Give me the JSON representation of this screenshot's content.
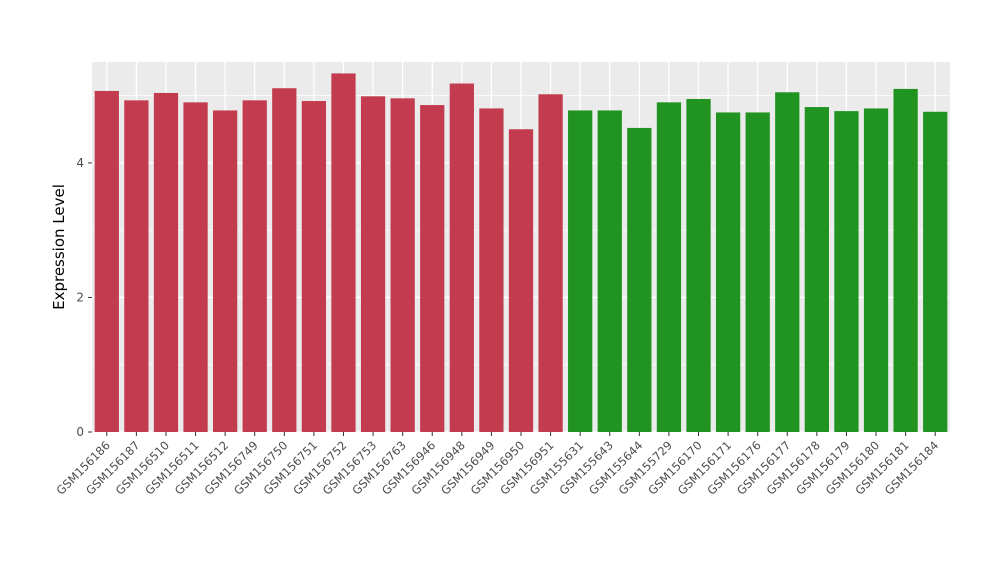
{
  "chart_data": {
    "type": "bar",
    "title": "",
    "xlabel": "",
    "ylabel": "Expression Level",
    "ylim": [
      0,
      5.5
    ],
    "yticks_major": [
      0,
      2,
      4
    ],
    "yticks_minor": [
      1,
      3,
      5
    ],
    "grid": "on",
    "legend": "none",
    "panel_bg": "#EBEBEB",
    "grid_color": "#FFFFFF",
    "tick_label_color": "#4D4D4D",
    "axis_title_color": "#000000",
    "colors": {
      "red": "#C23B4E",
      "green": "#209320"
    },
    "categories": [
      "GSM156186",
      "GSM156187",
      "GSM156510",
      "GSM156511",
      "GSM156512",
      "GSM156749",
      "GSM156750",
      "GSM156751",
      "GSM156752",
      "GSM156753",
      "GSM156763",
      "GSM156946",
      "GSM156948",
      "GSM156949",
      "GSM156950",
      "GSM156951",
      "GSM155631",
      "GSM155643",
      "GSM155644",
      "GSM155729",
      "GSM156170",
      "GSM156171",
      "GSM156176",
      "GSM156177",
      "GSM156178",
      "GSM156179",
      "GSM156180",
      "GSM156181",
      "GSM156184"
    ],
    "values": [
      5.07,
      4.93,
      5.04,
      4.9,
      4.78,
      4.93,
      5.11,
      4.92,
      5.33,
      4.99,
      4.96,
      4.86,
      5.18,
      4.81,
      4.5,
      5.02,
      4.78,
      4.78,
      4.52,
      4.9,
      4.95,
      4.75,
      4.75,
      5.05,
      4.83,
      4.77,
      4.81,
      5.1,
      4.76
    ],
    "bar_groups": [
      "red",
      "red",
      "red",
      "red",
      "red",
      "red",
      "red",
      "red",
      "red",
      "red",
      "red",
      "red",
      "red",
      "red",
      "red",
      "red",
      "green",
      "green",
      "green",
      "green",
      "green",
      "green",
      "green",
      "green",
      "green",
      "green",
      "green",
      "green",
      "green"
    ]
  }
}
